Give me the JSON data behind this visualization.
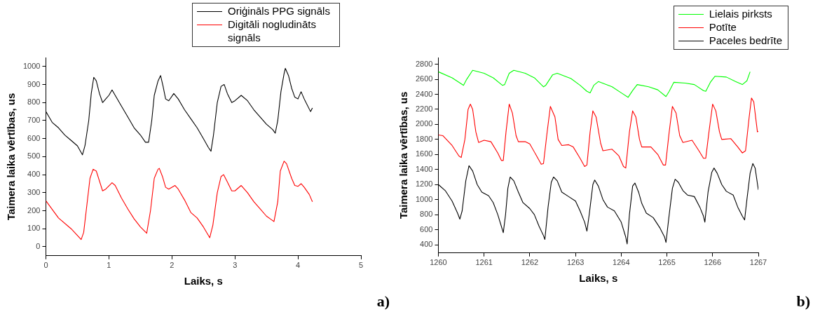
{
  "chart_data": [
    {
      "type": "line",
      "xlabel": "Laiks, s",
      "ylabel": "Taimera laika vērtības, us",
      "xlim": [
        0,
        5
      ],
      "xticks": [
        0,
        1,
        2,
        3,
        4,
        5
      ],
      "ylim": [
        -50,
        1050
      ],
      "yticks": [
        0,
        100,
        200,
        300,
        400,
        500,
        600,
        700,
        800,
        900,
        1000
      ],
      "grid": false,
      "legend": "top right",
      "annotations": [
        "a)"
      ],
      "series": [
        {
          "name": "Oriģināls PPG signāls",
          "color": "#000000",
          "x": [
            0,
            0.05,
            0.1,
            0.2,
            0.3,
            0.4,
            0.5,
            0.58,
            0.62,
            0.68,
            0.72,
            0.76,
            0.8,
            0.85,
            0.9,
            0.95,
            1.0,
            1.05,
            1.1,
            1.2,
            1.3,
            1.4,
            1.5,
            1.58,
            1.63,
            1.68,
            1.72,
            1.78,
            1.82,
            1.86,
            1.9,
            1.95,
            2.03,
            2.1,
            2.2,
            2.3,
            2.4,
            2.5,
            2.58,
            2.62,
            2.66,
            2.72,
            2.78,
            2.83,
            2.88,
            2.95,
            3.0,
            3.1,
            3.2,
            3.3,
            3.4,
            3.5,
            3.6,
            3.64,
            3.68,
            3.73,
            3.78,
            3.8,
            3.85,
            3.9,
            3.95,
            4.0,
            4.05,
            4.1,
            4.2,
            4.23
          ],
          "values": [
            750,
            720,
            690,
            660,
            620,
            590,
            560,
            510,
            560,
            700,
            850,
            940,
            920,
            850,
            800,
            820,
            840,
            870,
            840,
            780,
            720,
            660,
            620,
            580,
            580,
            700,
            840,
            920,
            950,
            890,
            820,
            810,
            850,
            820,
            760,
            710,
            660,
            600,
            550,
            530,
            620,
            800,
            890,
            900,
            850,
            800,
            810,
            840,
            810,
            760,
            720,
            680,
            650,
            630,
            700,
            860,
            960,
            990,
            950,
            880,
            830,
            820,
            860,
            820,
            750,
            770
          ]
        },
        {
          "name": "Digitāli nogludināts signāls",
          "color": "#ff0000",
          "x": [
            0,
            0.2,
            0.4,
            0.56,
            0.6,
            0.7,
            0.75,
            0.8,
            0.9,
            0.95,
            1.05,
            1.1,
            1.2,
            1.3,
            1.4,
            1.5,
            1.6,
            1.66,
            1.72,
            1.78,
            1.8,
            1.85,
            1.9,
            1.95,
            2.05,
            2.1,
            2.2,
            2.3,
            2.4,
            2.5,
            2.6,
            2.65,
            2.72,
            2.78,
            2.82,
            2.88,
            2.95,
            3.0,
            3.1,
            3.2,
            3.3,
            3.4,
            3.5,
            3.58,
            3.62,
            3.68,
            3.72,
            3.78,
            3.82,
            3.9,
            3.95,
            4.0,
            4.05,
            4.1,
            4.18,
            4.23
          ],
          "values": [
            255,
            160,
            100,
            40,
            80,
            380,
            430,
            420,
            310,
            320,
            355,
            340,
            270,
            210,
            155,
            110,
            75,
            200,
            380,
            430,
            435,
            390,
            330,
            320,
            340,
            320,
            260,
            190,
            160,
            110,
            50,
            120,
            300,
            390,
            400,
            360,
            310,
            310,
            340,
            300,
            250,
            210,
            170,
            150,
            140,
            250,
            420,
            475,
            460,
            380,
            340,
            335,
            350,
            330,
            290,
            250
          ]
        }
      ]
    },
    {
      "type": "line",
      "xlabel": "Laiks, s",
      "ylabel": "Taimera laika vērtības, us",
      "xlim": [
        1260,
        1267
      ],
      "xticks": [
        1260,
        1261,
        1262,
        1263,
        1264,
        1265,
        1266,
        1267
      ],
      "ylim": [
        290,
        2890
      ],
      "yticks": [
        400,
        600,
        800,
        1000,
        1200,
        1400,
        1600,
        1800,
        2000,
        2200,
        2400,
        2600,
        2800
      ],
      "grid": false,
      "legend": "top right",
      "annotations": [
        "b)"
      ],
      "series": [
        {
          "name": "Lielais pirksts",
          "color": "#00ff00",
          "x": [
            1260,
            1260.3,
            1260.5,
            1260.55,
            1260.62,
            1260.75,
            1261.0,
            1261.2,
            1261.4,
            1261.45,
            1261.55,
            1261.65,
            1261.9,
            1262.1,
            1262.3,
            1262.35,
            1262.5,
            1262.6,
            1262.9,
            1263.1,
            1263.25,
            1263.32,
            1263.4,
            1263.5,
            1263.8,
            1264.0,
            1264.15,
            1264.25,
            1264.35,
            1264.6,
            1264.8,
            1264.98,
            1265.05,
            1265.15,
            1265.4,
            1265.6,
            1265.8,
            1265.85,
            1265.95,
            1266.05,
            1266.3,
            1266.5,
            1266.65,
            1266.75,
            1266.82
          ],
          "values": [
            2700,
            2620,
            2540,
            2520,
            2600,
            2720,
            2680,
            2620,
            2520,
            2530,
            2680,
            2720,
            2680,
            2620,
            2500,
            2520,
            2660,
            2680,
            2610,
            2520,
            2440,
            2420,
            2520,
            2570,
            2500,
            2420,
            2360,
            2450,
            2530,
            2500,
            2460,
            2370,
            2440,
            2560,
            2550,
            2530,
            2450,
            2440,
            2560,
            2640,
            2630,
            2570,
            2530,
            2580,
            2700
          ]
        },
        {
          "name": "Potīte",
          "color": "#ff0000",
          "x": [
            1260,
            1260.1,
            1260.3,
            1260.45,
            1260.5,
            1260.58,
            1260.65,
            1260.7,
            1260.75,
            1260.82,
            1260.88,
            1261.0,
            1261.15,
            1261.3,
            1261.38,
            1261.42,
            1261.48,
            1261.55,
            1261.62,
            1261.7,
            1261.75,
            1261.9,
            1262.0,
            1262.15,
            1262.25,
            1262.3,
            1262.38,
            1262.45,
            1262.55,
            1262.62,
            1262.7,
            1262.85,
            1262.95,
            1263.1,
            1263.2,
            1263.25,
            1263.32,
            1263.38,
            1263.45,
            1263.55,
            1263.6,
            1263.8,
            1263.95,
            1264.05,
            1264.1,
            1264.18,
            1264.25,
            1264.32,
            1264.4,
            1264.45,
            1264.65,
            1264.8,
            1264.92,
            1264.97,
            1265.05,
            1265.12,
            1265.2,
            1265.28,
            1265.35,
            1265.55,
            1265.7,
            1265.8,
            1265.85,
            1265.92,
            1266.0,
            1266.07,
            1266.15,
            1266.2,
            1266.4,
            1266.55,
            1266.65,
            1266.72,
            1266.8,
            1266.85,
            1266.9,
            1266.95,
            1266.98,
            1267.0
          ],
          "values": [
            1860,
            1850,
            1720,
            1580,
            1560,
            1800,
            2200,
            2270,
            2200,
            1900,
            1760,
            1790,
            1770,
            1620,
            1520,
            1520,
            1900,
            2270,
            2150,
            1850,
            1770,
            1770,
            1740,
            1580,
            1470,
            1480,
            1900,
            2240,
            2100,
            1800,
            1720,
            1730,
            1700,
            1550,
            1440,
            1460,
            1900,
            2180,
            2100,
            1750,
            1650,
            1670,
            1580,
            1440,
            1420,
            1900,
            2180,
            2100,
            1800,
            1700,
            1700,
            1600,
            1460,
            1460,
            1900,
            2240,
            2150,
            1850,
            1760,
            1790,
            1650,
            1550,
            1550,
            1900,
            2270,
            2180,
            1900,
            1800,
            1810,
            1700,
            1620,
            1650,
            2100,
            2350,
            2300,
            2050,
            1900,
            1910
          ]
        },
        {
          "name": "Paceles bedrīte",
          "color": "#000000",
          "x": [
            1260,
            1260.15,
            1260.3,
            1260.42,
            1260.47,
            1260.52,
            1260.6,
            1260.67,
            1260.75,
            1260.85,
            1260.95,
            1261.1,
            1261.2,
            1261.3,
            1261.38,
            1261.42,
            1261.47,
            1261.52,
            1261.57,
            1261.65,
            1261.75,
            1261.85,
            1262.0,
            1262.1,
            1262.2,
            1262.3,
            1262.33,
            1262.4,
            1262.47,
            1262.52,
            1262.6,
            1262.7,
            1262.85,
            1263.0,
            1263.1,
            1263.2,
            1263.25,
            1263.3,
            1263.38,
            1263.42,
            1263.5,
            1263.6,
            1263.7,
            1263.85,
            1264.0,
            1264.1,
            1264.13,
            1264.18,
            1264.25,
            1264.3,
            1264.38,
            1264.45,
            1264.55,
            1264.7,
            1264.85,
            1264.95,
            1264.98,
            1265.05,
            1265.12,
            1265.18,
            1265.25,
            1265.35,
            1265.45,
            1265.6,
            1265.72,
            1265.8,
            1265.83,
            1265.9,
            1265.98,
            1266.03,
            1266.1,
            1266.2,
            1266.3,
            1266.45,
            1266.55,
            1266.65,
            1266.7,
            1266.75,
            1266.82,
            1266.88,
            1266.93,
            1267.0
          ],
          "values": [
            1200,
            1120,
            980,
            820,
            740,
            850,
            1250,
            1450,
            1380,
            1200,
            1100,
            1050,
            960,
            800,
            640,
            560,
            800,
            1150,
            1300,
            1250,
            1100,
            960,
            880,
            800,
            650,
            520,
            470,
            900,
            1230,
            1300,
            1250,
            1100,
            1040,
            980,
            850,
            700,
            580,
            800,
            1200,
            1260,
            1180,
            1000,
            900,
            850,
            700,
            500,
            410,
            800,
            1180,
            1220,
            1100,
            950,
            820,
            760,
            620,
            500,
            430,
            800,
            1150,
            1270,
            1230,
            1120,
            1060,
            1040,
            900,
            780,
            700,
            1100,
            1360,
            1420,
            1350,
            1200,
            1110,
            1060,
            900,
            780,
            730,
            1000,
            1350,
            1480,
            1420,
            1130
          ]
        }
      ]
    }
  ]
}
